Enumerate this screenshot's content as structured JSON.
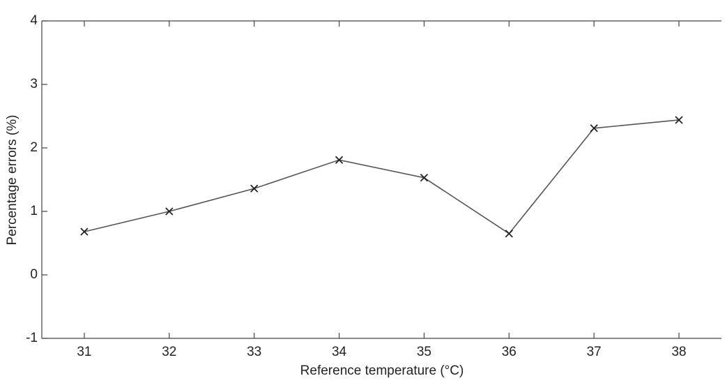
{
  "chart_data": {
    "type": "line",
    "xlabel": "Reference temperature (°C)",
    "ylabel": "Percentage errors (%)",
    "x": [
      31,
      32,
      33,
      34,
      35,
      36,
      37,
      38
    ],
    "values": [
      0.68,
      1.0,
      1.36,
      1.81,
      1.53,
      0.65,
      2.31,
      2.44
    ],
    "color": "#555555",
    "marker": "x",
    "xlim": [
      30.5,
      38.5
    ],
    "xticks": [
      31,
      32,
      33,
      34,
      35,
      36,
      37,
      38
    ],
    "ylim": [
      -1,
      4
    ],
    "yticks": [
      -1,
      0,
      1,
      2,
      3,
      4
    ],
    "grid": false
  }
}
